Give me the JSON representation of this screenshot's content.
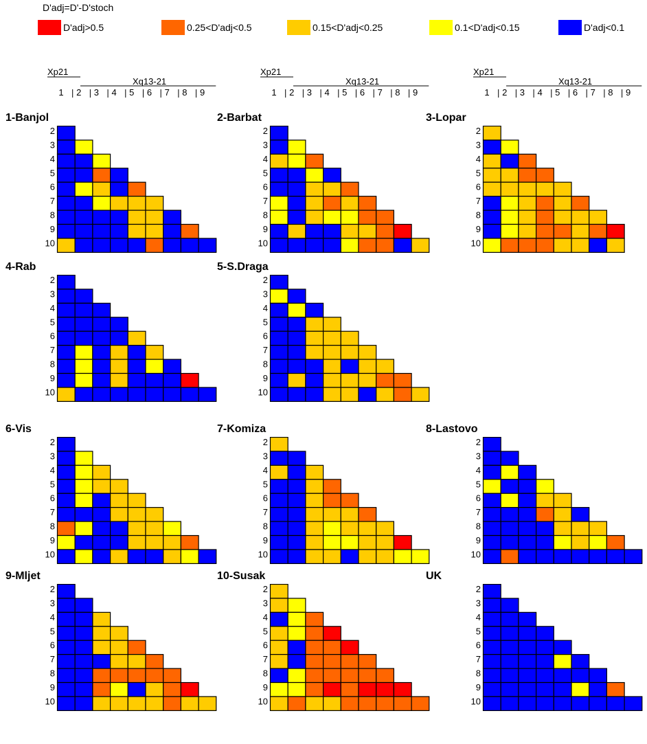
{
  "legend": {
    "title": "D'adj=D'-D'stoch",
    "items": [
      {
        "label": "D'adj>0.5",
        "color": "#ff0000"
      },
      {
        "label": "0.25<D'adj<0.5",
        "color": "#ff6600"
      },
      {
        "label": "0.15<D'adj<0.25",
        "color": "#ffcc00"
      },
      {
        "label": "0.1<D'adj<0.15",
        "color": "#ffff00"
      },
      {
        "label": "D'adj<0.1",
        "color": "#0000ff"
      }
    ]
  },
  "header": {
    "xp21_label": "Xp21",
    "xq_label": "Xq13-21",
    "columns": [
      "1",
      "2",
      "3",
      "4",
      "5",
      "6",
      "7",
      "8",
      "9"
    ]
  },
  "chart_data": {
    "type": "heatmap",
    "row_labels": [
      "2",
      "3",
      "4",
      "5",
      "6",
      "7",
      "8",
      "9",
      "10"
    ],
    "col_labels": [
      "1",
      "2",
      "3",
      "4",
      "5",
      "6",
      "7",
      "8",
      "9"
    ],
    "code_legend": {
      "R": "D'adj>0.5",
      "O": "0.25<D'adj<0.5",
      "G": "0.15<D'adj<0.25",
      "Y": "0.1<D'adj<0.15",
      "B": "D'adj<0.1"
    },
    "panels": [
      {
        "title": "1-Banjol",
        "rows": [
          "B",
          "BY",
          "BBY",
          "BBOB",
          "BYGBO",
          "BBYGGG",
          "BBBBGGB",
          "BBBBGGBO",
          "GBBBBOBBB"
        ]
      },
      {
        "title": "2-Barbat",
        "rows": [
          "B",
          "BY",
          "GYO",
          "BBYB",
          "BBGGO",
          "YBGOGO",
          "YBGYYOO",
          "BGBBGGOR",
          "BBBBYOOBG"
        ]
      },
      {
        "title": "3-Lopar",
        "rows": [
          "G",
          "BY",
          "GBO",
          "GGOO",
          "GGGGG",
          "BYGOGO",
          "BYGOGGG",
          "BYGOOGOR",
          "YOOOGGBG"
        ]
      },
      {
        "title": "4-Rab",
        "rows": [
          "B",
          "BB",
          "BBB",
          "BBBB",
          "BBBBG",
          "BYBGBG",
          "BYBGBYB",
          "BYBGBBBR",
          "GBBBBBBBB"
        ]
      },
      {
        "title": "5-S.Draga",
        "rows": [
          "B",
          "YB",
          "BYB",
          "BBGG",
          "BBGGG",
          "BBGGGG",
          "BBBGBGG",
          "BGBGGGOO",
          "BBBGGBGOG"
        ]
      },
      {
        "title": "6-Vis",
        "rows": [
          "B",
          "BY",
          "BYG",
          "BYGG",
          "BYBGG",
          "BBBGGG",
          "OYBBGGY",
          "YBBBGGGO",
          "BYBGBBGYB"
        ]
      },
      {
        "title": "7-Komiza",
        "rows": [
          "G",
          "BB",
          "GBG",
          "BBGO",
          "BBGOO",
          "BBGGGO",
          "BBGYGGG",
          "BBGYYGGR",
          "BBGGBGGYY"
        ]
      },
      {
        "title": "8-Lastovo",
        "rows": [
          "B",
          "BB",
          "BYB",
          "YBBY",
          "BYBGG",
          "BBBOGB",
          "BBBBGGG",
          "BBBBYGYO",
          "BOBBBBBBB"
        ]
      },
      {
        "title": "9-Mljet",
        "rows": [
          "B",
          "BB",
          "BBG",
          "BBGG",
          "BBGGO",
          "BBBGGO",
          "BBOOOOO",
          "BBOYBGOR",
          "BBGGGGOGG"
        ]
      },
      {
        "title": "10-Susak",
        "rows": [
          "G",
          "GY",
          "BYO",
          "GYOR",
          "GBOOR",
          "GBOOOO",
          "BYOOOOO",
          "YYORORRR",
          "GOGGOOOOO"
        ]
      },
      {
        "title": "UK",
        "rows": [
          "B",
          "BB",
          "BBB",
          "BBBB",
          "BBBBB",
          "BBBBYB",
          "BBBBBBB",
          "BBBBBYBO",
          "BBBBBBBBB"
        ]
      }
    ]
  }
}
